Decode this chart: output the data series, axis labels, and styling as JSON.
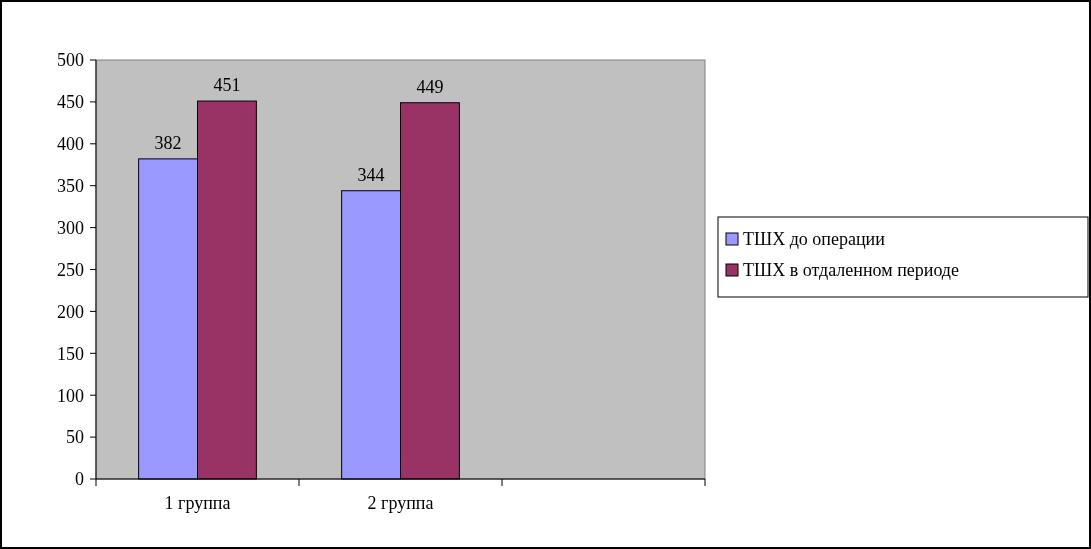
{
  "chart_data": {
    "type": "bar",
    "categories": [
      "1 группа",
      "2 группа",
      null
    ],
    "series": [
      {
        "name": "ТШХ до операции",
        "color": "#9999ff",
        "values": [
          382,
          344,
          null
        ]
      },
      {
        "name": "ТШХ в отдаленном периоде",
        "color": "#993366",
        "values": [
          451,
          449,
          null
        ]
      }
    ],
    "ylim": [
      0,
      500
    ],
    "yticks": [
      0,
      50,
      100,
      150,
      200,
      250,
      300,
      350,
      400,
      450,
      500
    ],
    "data_labels": true,
    "grid": false,
    "legend": "right"
  }
}
